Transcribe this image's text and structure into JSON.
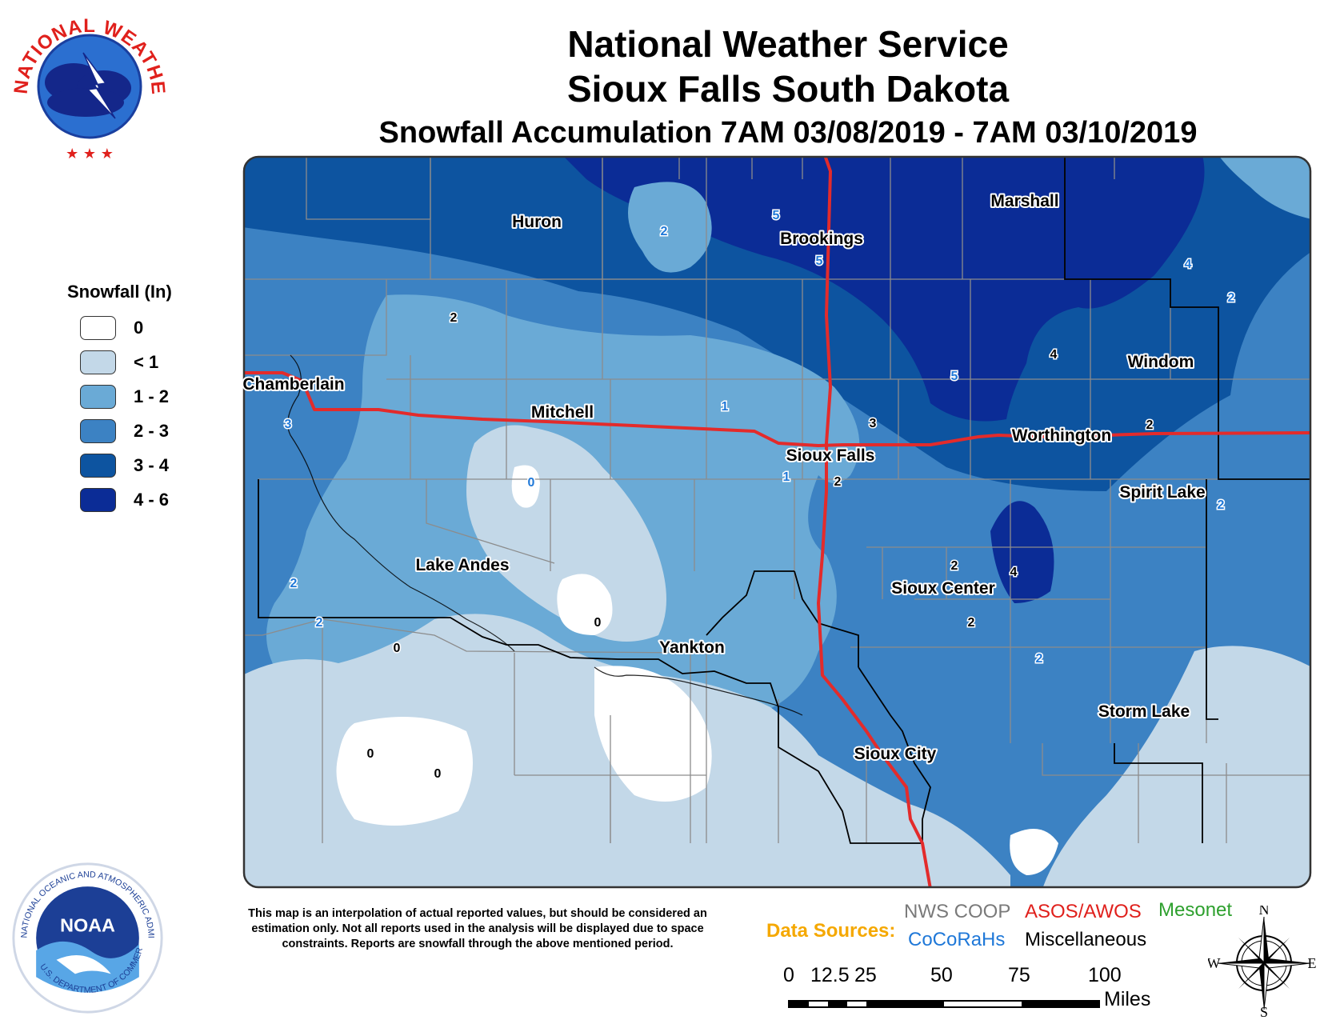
{
  "header": {
    "title_line1": "National Weather Service",
    "title_line2": "Sioux Falls South Dakota",
    "title_line3": "Snowfall Accumulation 7AM 03/08/2019 - 7AM 03/10/2019"
  },
  "legend": {
    "title": "Snowfall (In)",
    "classes": [
      {
        "label": "0",
        "color": "#ffffff"
      },
      {
        "label": "< 1",
        "color": "#c3d8e8"
      },
      {
        "label": "1 - 2",
        "color": "#6aaad6"
      },
      {
        "label": "2 - 3",
        "color": "#3c82c3"
      },
      {
        "label": "3 - 4",
        "color": "#0d54a0"
      },
      {
        "label": "4 - 6",
        "color": "#0b2c96"
      }
    ]
  },
  "cities": [
    "Huron",
    "Brookings",
    "Marshall",
    "Chamberlain",
    "Mitchell",
    "Windom",
    "Worthington",
    "Sioux Falls",
    "Spirit Lake",
    "Lake Andes",
    "Sioux Center",
    "Yankton",
    "Storm Lake",
    "Sioux City"
  ],
  "reports": [
    {
      "value": "2",
      "color": "#1f78d8"
    },
    {
      "value": "5",
      "color": "#1f78d8"
    },
    {
      "value": "5",
      "color": "#1f78d8"
    },
    {
      "value": "4",
      "color": "#1f78d8"
    },
    {
      "value": "2",
      "color": "#1f78d8"
    },
    {
      "value": "2",
      "color": "#000000"
    },
    {
      "value": "4",
      "color": "#000000"
    },
    {
      "value": "5",
      "color": "#1f78d8"
    },
    {
      "value": "1",
      "color": "#1f78d8"
    },
    {
      "value": "3",
      "color": "#000000"
    },
    {
      "value": "3",
      "color": "#1f78d8"
    },
    {
      "value": "2",
      "color": "#000000"
    },
    {
      "value": "1",
      "color": "#1f78d8"
    },
    {
      "value": "2",
      "color": "#000000"
    },
    {
      "value": "0",
      "color": "#1f78d8"
    },
    {
      "value": "2",
      "color": "#1f78d8"
    },
    {
      "value": "2",
      "color": "#000000"
    },
    {
      "value": "4",
      "color": "#000000"
    },
    {
      "value": "2",
      "color": "#1f78d8"
    },
    {
      "value": "2",
      "color": "#1f78d8"
    },
    {
      "value": "0",
      "color": "#000000"
    },
    {
      "value": "2",
      "color": "#000000"
    },
    {
      "value": "0",
      "color": "#000000"
    },
    {
      "value": "2",
      "color": "#1f78d8"
    },
    {
      "value": "0",
      "color": "#000000"
    },
    {
      "value": "0",
      "color": "#000000"
    }
  ],
  "disclaimer": "This map is an interpolation of actual reported values, but should be considered an estimation only. Not all reports used in the analysis will be displayed due to space constraints. Reports are snowfall through the above mentioned period.",
  "data_sources": {
    "label": "Data Sources:",
    "nws_coop": "NWS COOP",
    "asos_awos": "ASOS/AWOS",
    "mesonet": "Mesonet",
    "cocorahs": "CoCoRaHs",
    "misc": "Miscellaneous"
  },
  "scale_bar": {
    "ticks": [
      "0",
      "12.5",
      "25",
      "50",
      "75",
      "100"
    ],
    "units": "Miles"
  },
  "compass": {
    "n": "N",
    "s": "S",
    "e": "E",
    "w": "W"
  },
  "logos": {
    "nws_ring_text": "NATIONAL WEATHER SERVICE",
    "noaa_center": "NOAA",
    "noaa_ring_text": "NATIONAL OCEANIC AND ATMOSPHERIC ADMINISTRATION",
    "noaa_bottom_text": "U.S. DEPARTMENT OF COMMERCE"
  },
  "colors": {
    "highway": "#e32b2b",
    "county_border": "#8c8c8c",
    "state_border": "#000000"
  }
}
